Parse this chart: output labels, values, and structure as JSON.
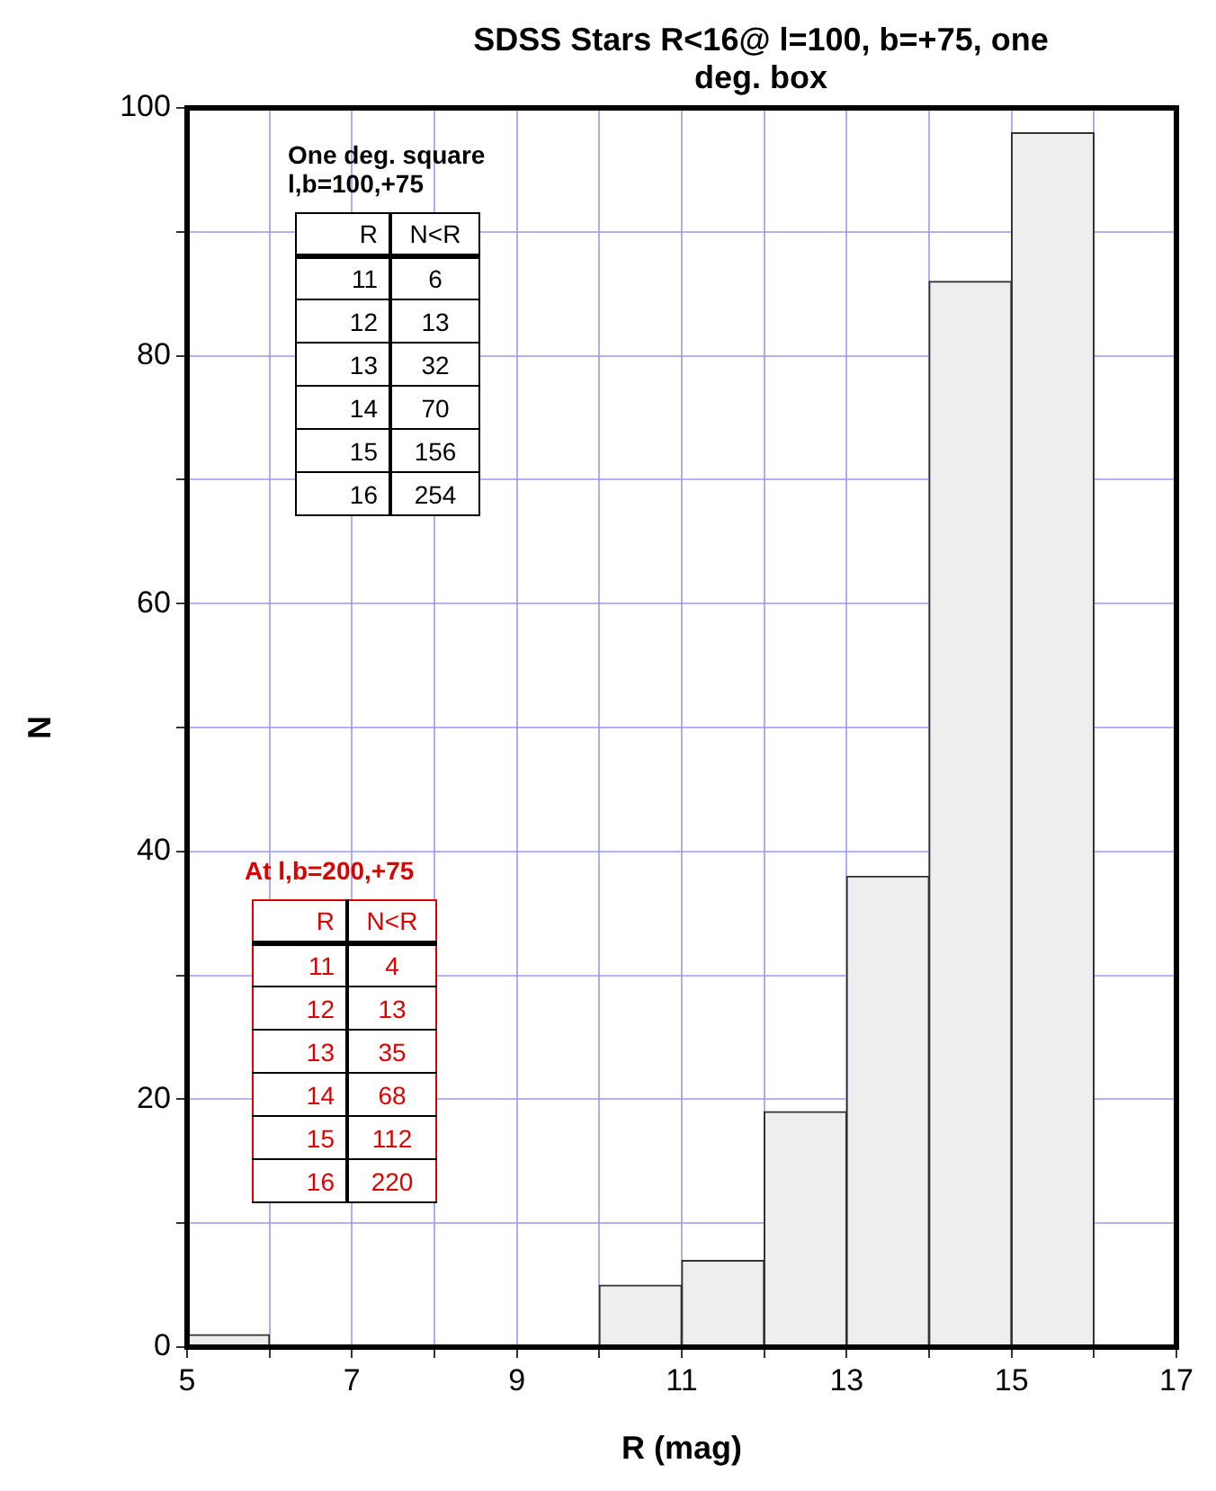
{
  "chart_data": {
    "type": "histogram",
    "title": "SDSS Stars R<16@ l=100, b=+75, one deg. box",
    "xlabel": "R (mag)",
    "ylabel": "N",
    "bins": [
      5,
      6,
      7,
      8,
      9,
      10,
      11,
      12,
      13,
      14,
      15,
      16
    ],
    "values": [
      1,
      0,
      0,
      0,
      0,
      5,
      7,
      19,
      38,
      86,
      98
    ],
    "color": "#eeeeee",
    "xlim": [
      5,
      17
    ],
    "ylim": [
      0,
      100
    ],
    "xticks": [
      5,
      {
        "value": 6,
        "label": null
      },
      7,
      {
        "value": 8,
        "label": null
      },
      9,
      {
        "value": 10,
        "label": null
      },
      11,
      {
        "value": 12,
        "label": null
      },
      13,
      {
        "value": 14,
        "label": null
      },
      15,
      {
        "value": 16,
        "label": null
      },
      17
    ],
    "yticks": [
      0,
      {
        "value": 10,
        "label": null
      },
      20,
      {
        "value": 30,
        "label": null
      },
      40,
      {
        "value": 50,
        "label": null
      },
      60,
      {
        "value": 70,
        "label": null
      },
      80,
      {
        "value": 90,
        "label": null
      },
      100
    ],
    "grid": true,
    "annotations": [
      "One deg. square",
      "l,b=100,+75",
      "R",
      "N<R",
      "11",
      "6",
      "12",
      "13",
      "13",
      "32",
      "14",
      "70",
      "15",
      "156",
      "16",
      "254",
      "At l,b=200,+75",
      "R",
      "N<R",
      "11",
      "4",
      "12",
      "13",
      "13",
      "35",
      "14",
      "68",
      "15",
      "112",
      "16",
      "220"
    ]
  }
}
